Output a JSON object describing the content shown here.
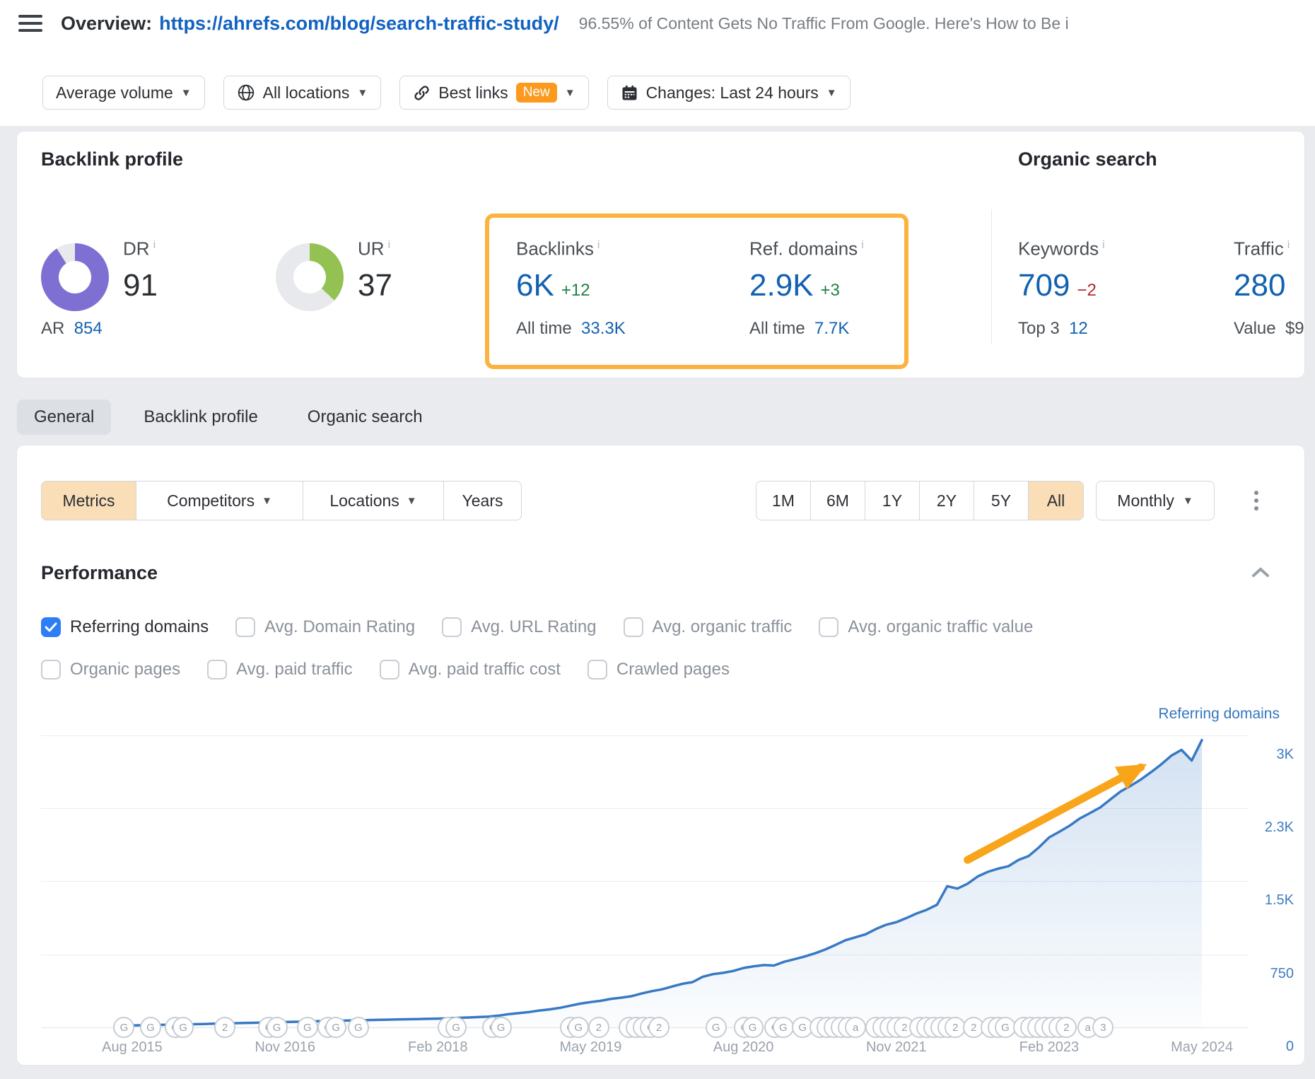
{
  "header": {
    "title_prefix": "Overview:",
    "url": "https://ahrefs.com/blog/search-traffic-study/",
    "page_title": "96.55% of Content Gets No Traffic From Google. Here's How to Be i"
  },
  "filters": {
    "metric": {
      "label": "Average volume"
    },
    "location": {
      "label": "All locations"
    },
    "best_links": {
      "label": "Best links",
      "badge": "New"
    },
    "changes": {
      "label": "Changes: Last 24 hours"
    }
  },
  "stats": {
    "backlink_profile_title": "Backlink profile",
    "dr": {
      "label": "DR",
      "info": "i",
      "value": "91",
      "percent": 91,
      "color": "#7d70d2"
    },
    "ur": {
      "label": "UR",
      "info": "i",
      "value": "37",
      "percent": 37,
      "color": "#93c152"
    },
    "ar": {
      "label": "AR",
      "value": "854"
    },
    "backlinks": {
      "label": "Backlinks",
      "info": "i",
      "value": "6K",
      "delta": "+12",
      "alltime_label": "All time",
      "alltime_value": "33.3K"
    },
    "ref_domains": {
      "label": "Ref. domains",
      "info": "i",
      "value": "2.9K",
      "delta": "+3",
      "alltime_label": "All time",
      "alltime_value": "7.7K"
    },
    "organic_title": "Organic search",
    "keywords": {
      "label": "Keywords",
      "info": "i",
      "value": "709",
      "delta": "−2",
      "sub_label": "Top 3",
      "sub_value": "12"
    },
    "traffic": {
      "label": "Traffic",
      "info": "i",
      "value": "280",
      "sub_label": "Value",
      "sub_value": "$9"
    }
  },
  "tabs": [
    {
      "label": "General",
      "active": true
    },
    {
      "label": "Backlink profile",
      "active": false
    },
    {
      "label": "Organic search",
      "active": false
    }
  ],
  "toolbar": {
    "segments": [
      {
        "label": "Metrics",
        "active": true,
        "caret": false
      },
      {
        "label": "Competitors",
        "active": false,
        "caret": true
      },
      {
        "label": "Locations",
        "active": false,
        "caret": true
      },
      {
        "label": "Years",
        "active": false,
        "caret": false
      }
    ],
    "ranges": [
      "1M",
      "6M",
      "1Y",
      "2Y",
      "5Y",
      "All"
    ],
    "active_range": "All",
    "granularity": "Monthly"
  },
  "performance": {
    "title": "Performance",
    "metrics_row1": [
      {
        "label": "Referring domains",
        "checked": true
      },
      {
        "label": "Avg. Domain Rating",
        "checked": false
      },
      {
        "label": "Avg. URL Rating",
        "checked": false
      },
      {
        "label": "Avg. organic traffic",
        "checked": false
      },
      {
        "label": "Avg. organic traffic value",
        "checked": false
      }
    ],
    "metrics_row2": [
      {
        "label": "Organic pages",
        "checked": false
      },
      {
        "label": "Avg. paid traffic",
        "checked": false
      },
      {
        "label": "Avg. paid traffic cost",
        "checked": false
      },
      {
        "label": "Crawled pages",
        "checked": false
      }
    ]
  },
  "colors": {
    "highlight_orange": "#fcb23e",
    "badge_orange": "#fb9a1e",
    "link_blue": "#1262c2",
    "value_blue": "#1261b1",
    "delta_green": "#1e8243",
    "delta_red": "#b3282d",
    "checkbox_blue": "#2e7cf6",
    "selected_peach": "#f9deb7",
    "dr_purple": "#7d70d2",
    "ur_green": "#93c152",
    "chart_line_blue": "#3779c4",
    "axis_label_blue": "#3e7cc0",
    "arrow_orange": "#f9a51b"
  },
  "chart_data": {
    "type": "area",
    "series_name": "Referring domains",
    "legend_position": "top-right",
    "grid": true,
    "months_start": "Aug 2015",
    "months_end": "May 2024",
    "x_tick_labels": [
      "Aug 2015",
      "Nov 2016",
      "Feb 2018",
      "May 2019",
      "Aug 2020",
      "Nov 2021",
      "Feb 2023",
      "May 2024"
    ],
    "x_tick_months": [
      0,
      15,
      30,
      45,
      60,
      75,
      90,
      105
    ],
    "y_tick_labels": [
      "3K",
      "2.3K",
      "1.5K",
      "750",
      "0"
    ],
    "y_tick_values": [
      3000,
      2250,
      1500,
      750,
      0
    ],
    "ylim": [
      0,
      3100
    ],
    "anchor_points_month_value": [
      [
        0,
        20
      ],
      [
        5,
        30
      ],
      [
        11,
        45
      ],
      [
        17,
        60
      ],
      [
        23,
        75
      ],
      [
        30,
        90
      ],
      [
        35,
        110
      ],
      [
        41,
        185
      ],
      [
        45,
        260
      ],
      [
        49,
        320
      ],
      [
        53,
        420
      ],
      [
        55,
        465
      ],
      [
        56,
        520
      ],
      [
        58,
        560
      ],
      [
        60,
        610
      ],
      [
        62,
        640
      ],
      [
        63,
        635
      ],
      [
        65,
        700
      ],
      [
        67,
        760
      ],
      [
        69,
        845
      ],
      [
        71,
        925
      ],
      [
        73,
        1010
      ],
      [
        75,
        1080
      ],
      [
        77,
        1170
      ],
      [
        79,
        1260
      ],
      [
        80,
        1450
      ],
      [
        81,
        1425
      ],
      [
        83,
        1550
      ],
      [
        85,
        1630
      ],
      [
        86,
        1655
      ],
      [
        88,
        1760
      ],
      [
        90,
        1950
      ],
      [
        92,
        2070
      ],
      [
        94,
        2200
      ],
      [
        96,
        2340
      ],
      [
        98,
        2480
      ],
      [
        100,
        2620
      ],
      [
        101,
        2700
      ],
      [
        102,
        2790
      ],
      [
        103,
        2850
      ],
      [
        104,
        2740
      ],
      [
        105,
        2950
      ]
    ],
    "annotation_arrow": {
      "color": "#f9a51b",
      "from_month_value": [
        82,
        1720
      ],
      "to_month_value": [
        99,
        2670
      ]
    },
    "event_markers_month_letter": [
      [
        -0.8,
        "G"
      ],
      [
        1.8,
        "G"
      ],
      [
        4.2,
        "C"
      ],
      [
        5.0,
        "G"
      ],
      [
        9.1,
        "2"
      ],
      [
        13.4,
        "C"
      ],
      [
        14.2,
        "G"
      ],
      [
        17.2,
        "G"
      ],
      [
        19.2,
        "C"
      ],
      [
        20.0,
        "G"
      ],
      [
        22.2,
        "G"
      ],
      [
        31.0,
        "2"
      ],
      [
        31.8,
        "G"
      ],
      [
        35.4,
        "C"
      ],
      [
        36.2,
        "G"
      ],
      [
        43.0,
        "C"
      ],
      [
        43.8,
        "G"
      ],
      [
        45.8,
        "2"
      ],
      [
        48.8,
        "C"
      ],
      [
        49.5,
        "C"
      ],
      [
        50.2,
        "C"
      ],
      [
        50.9,
        "C"
      ],
      [
        51.7,
        "2"
      ],
      [
        57.3,
        "G"
      ],
      [
        60.1,
        "C"
      ],
      [
        60.9,
        "G"
      ],
      [
        63.1,
        "C"
      ],
      [
        63.9,
        "G"
      ],
      [
        65.8,
        "G"
      ],
      [
        67.5,
        "C"
      ],
      [
        68.2,
        "a"
      ],
      [
        68.9,
        "E"
      ],
      [
        69.6,
        "C"
      ],
      [
        70.3,
        "C"
      ],
      [
        71.0,
        "a"
      ],
      [
        73.0,
        "C"
      ],
      [
        73.7,
        "C"
      ],
      [
        74.4,
        "E"
      ],
      [
        75.1,
        "C"
      ],
      [
        75.8,
        "2"
      ],
      [
        77.3,
        "2"
      ],
      [
        78.0,
        "a"
      ],
      [
        78.7,
        "2"
      ],
      [
        79.4,
        "C"
      ],
      [
        80.1,
        "C"
      ],
      [
        80.8,
        "2"
      ],
      [
        82.6,
        "2"
      ],
      [
        84.3,
        "C"
      ],
      [
        85.0,
        "2"
      ],
      [
        85.7,
        "G"
      ],
      [
        87.5,
        "E"
      ],
      [
        88.2,
        "E"
      ],
      [
        88.9,
        "C"
      ],
      [
        89.6,
        "C"
      ],
      [
        90.3,
        "C"
      ],
      [
        91.0,
        "2"
      ],
      [
        91.7,
        "2"
      ],
      [
        93.8,
        "a"
      ],
      [
        95.3,
        "3"
      ]
    ]
  }
}
